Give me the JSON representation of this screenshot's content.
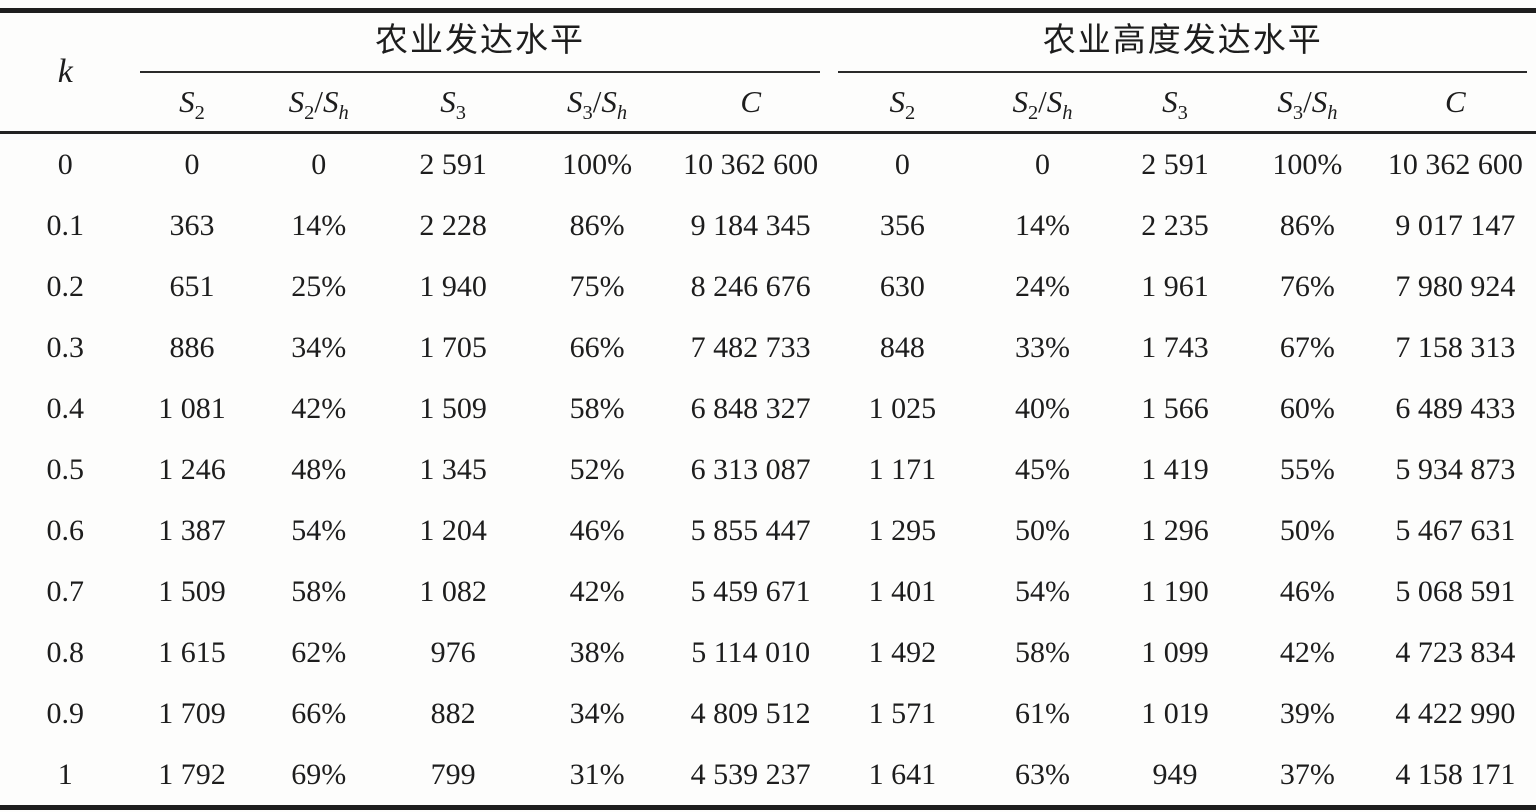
{
  "table": {
    "k_label": "k",
    "groups": [
      {
        "name": "developed",
        "label": "农业发达水平"
      },
      {
        "name": "highly-developed",
        "label": "农业高度发达水平"
      }
    ],
    "sub_columns": [
      {
        "name": "s2",
        "parts": [
          {
            "t": "S",
            "i": true
          },
          {
            "t": "2",
            "sub": true
          }
        ]
      },
      {
        "name": "s2-sh",
        "parts": [
          {
            "t": "S",
            "i": true
          },
          {
            "t": "2",
            "sub": true
          },
          {
            "t": "/"
          },
          {
            "t": "S",
            "i": true
          },
          {
            "t": "h",
            "sub": true,
            "i": true
          }
        ]
      },
      {
        "name": "s3",
        "parts": [
          {
            "t": "S",
            "i": true
          },
          {
            "t": "3",
            "sub": true
          }
        ]
      },
      {
        "name": "s3-sh",
        "parts": [
          {
            "t": "S",
            "i": true
          },
          {
            "t": "3",
            "sub": true
          },
          {
            "t": "/"
          },
          {
            "t": "S",
            "i": true
          },
          {
            "t": "h",
            "sub": true,
            "i": true
          }
        ]
      },
      {
        "name": "c",
        "parts": [
          {
            "t": "C",
            "i": true
          }
        ]
      }
    ],
    "rows": [
      {
        "k": "0",
        "developed": [
          "0",
          "0",
          "2 591",
          "100%",
          "10 362 600"
        ],
        "highly_developed": [
          "0",
          "0",
          "2 591",
          "100%",
          "10 362 600"
        ]
      },
      {
        "k": "0.1",
        "developed": [
          "363",
          "14%",
          "2 228",
          "86%",
          "9 184 345"
        ],
        "highly_developed": [
          "356",
          "14%",
          "2 235",
          "86%",
          "9 017 147"
        ]
      },
      {
        "k": "0.2",
        "developed": [
          "651",
          "25%",
          "1 940",
          "75%",
          "8 246 676"
        ],
        "highly_developed": [
          "630",
          "24%",
          "1 961",
          "76%",
          "7 980 924"
        ]
      },
      {
        "k": "0.3",
        "developed": [
          "886",
          "34%",
          "1 705",
          "66%",
          "7 482 733"
        ],
        "highly_developed": [
          "848",
          "33%",
          "1 743",
          "67%",
          "7 158 313"
        ]
      },
      {
        "k": "0.4",
        "developed": [
          "1 081",
          "42%",
          "1 509",
          "58%",
          "6 848 327"
        ],
        "highly_developed": [
          "1 025",
          "40%",
          "1 566",
          "60%",
          "6 489 433"
        ]
      },
      {
        "k": "0.5",
        "developed": [
          "1 246",
          "48%",
          "1 345",
          "52%",
          "6 313 087"
        ],
        "highly_developed": [
          "1 171",
          "45%",
          "1 419",
          "55%",
          "5 934 873"
        ]
      },
      {
        "k": "0.6",
        "developed": [
          "1 387",
          "54%",
          "1 204",
          "46%",
          "5 855 447"
        ],
        "highly_developed": [
          "1 295",
          "50%",
          "1 296",
          "50%",
          "5 467 631"
        ]
      },
      {
        "k": "0.7",
        "developed": [
          "1 509",
          "58%",
          "1 082",
          "42%",
          "5 459 671"
        ],
        "highly_developed": [
          "1 401",
          "54%",
          "1 190",
          "46%",
          "5 068 591"
        ]
      },
      {
        "k": "0.8",
        "developed": [
          "1 615",
          "62%",
          "976",
          "38%",
          "5 114 010"
        ],
        "highly_developed": [
          "1 492",
          "58%",
          "1 099",
          "42%",
          "4 723 834"
        ]
      },
      {
        "k": "0.9",
        "developed": [
          "1 709",
          "66%",
          "882",
          "34%",
          "4 809 512"
        ],
        "highly_developed": [
          "1 571",
          "61%",
          "1 019",
          "39%",
          "4 422 990"
        ]
      },
      {
        "k": "1",
        "developed": [
          "1 792",
          "69%",
          "799",
          "31%",
          "4 539 237"
        ],
        "highly_developed": [
          "1 641",
          "63%",
          "949",
          "37%",
          "4 158 171"
        ]
      }
    ]
  },
  "colors": {
    "text": "#1d1d1d",
    "rule_heavy": "#1e1e1e",
    "rule_light": "#2a2a2a",
    "background": "#fdfdfc"
  }
}
